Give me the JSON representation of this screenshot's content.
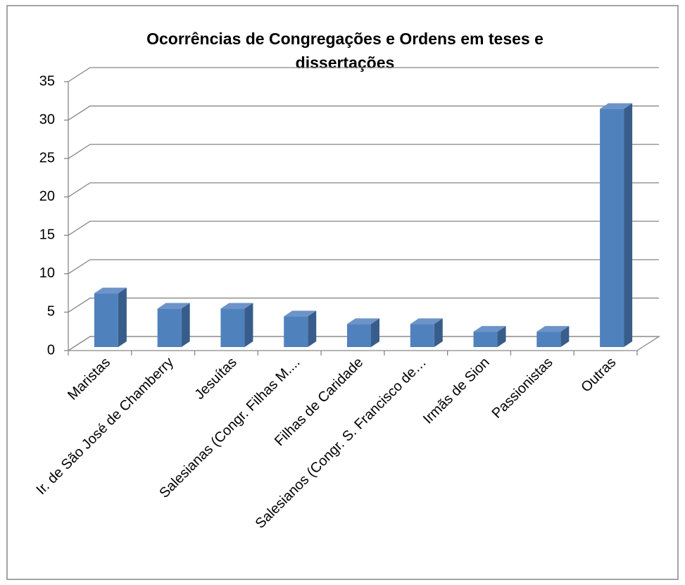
{
  "chart_data": {
    "type": "bar3d",
    "title": [
      "Ocorrências de Congregações e Ordens em teses e",
      "dissertações"
    ],
    "categories": [
      "Maristas",
      "Ir. de São José de Chamberry",
      "Jesuítas",
      "Salesianas (Congr. Filhas M....",
      "Filhas de Caridade",
      "Salesianos (Congr. S. Francisco de…",
      "Irmãs de Sion",
      "Passionistas",
      "Outras"
    ],
    "values": [
      7,
      5,
      5,
      4,
      3,
      3,
      2,
      2,
      31
    ],
    "color": "#4f81bd",
    "ylim": [
      0,
      35
    ],
    "yticks": [
      0,
      5,
      10,
      15,
      20,
      25,
      30,
      35
    ],
    "grid": true
  }
}
